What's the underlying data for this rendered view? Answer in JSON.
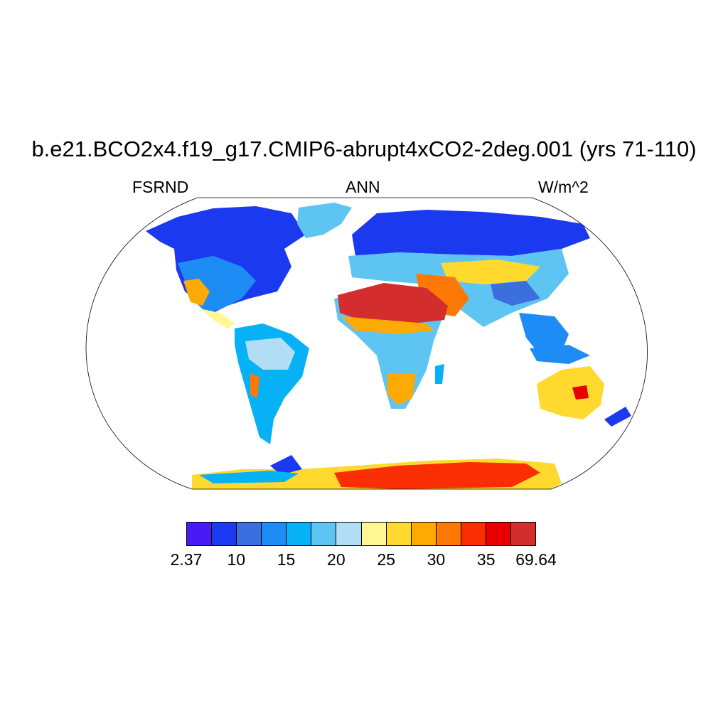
{
  "title": "b.e21.BCO2x4.f19_g17.CMIP6-abrupt4xCO2-2deg.001 (yrs 71-110)",
  "subtitle_left": "FSRND",
  "subtitle_center": "ANN",
  "subtitle_right": "W/m^2",
  "colorbar": {
    "colors": [
      "#4a1af5",
      "#1b3af0",
      "#3b6fe0",
      "#1e8cf5",
      "#06b2f5",
      "#5ec5f2",
      "#b1def4",
      "#fff694",
      "#ffd92e",
      "#fdaa04",
      "#fd7806",
      "#fb2d02",
      "#e60000",
      "#d32d2d"
    ],
    "labels": [
      "2.37",
      "10",
      "15",
      "20",
      "25",
      "30",
      "35",
      "69.64"
    ]
  },
  "colors": {
    "very_low": "#4a1af5",
    "low": "#1b3af0",
    "mid_low": "#3b6fe0",
    "mid": "#1e8cf5",
    "mid_high": "#5ec5f2",
    "warm": "#fff694",
    "hot": "#fdaa04",
    "very_hot": "#e60000",
    "max": "#d32d2d",
    "coast": "#000000",
    "background": "#ffffff"
  }
}
